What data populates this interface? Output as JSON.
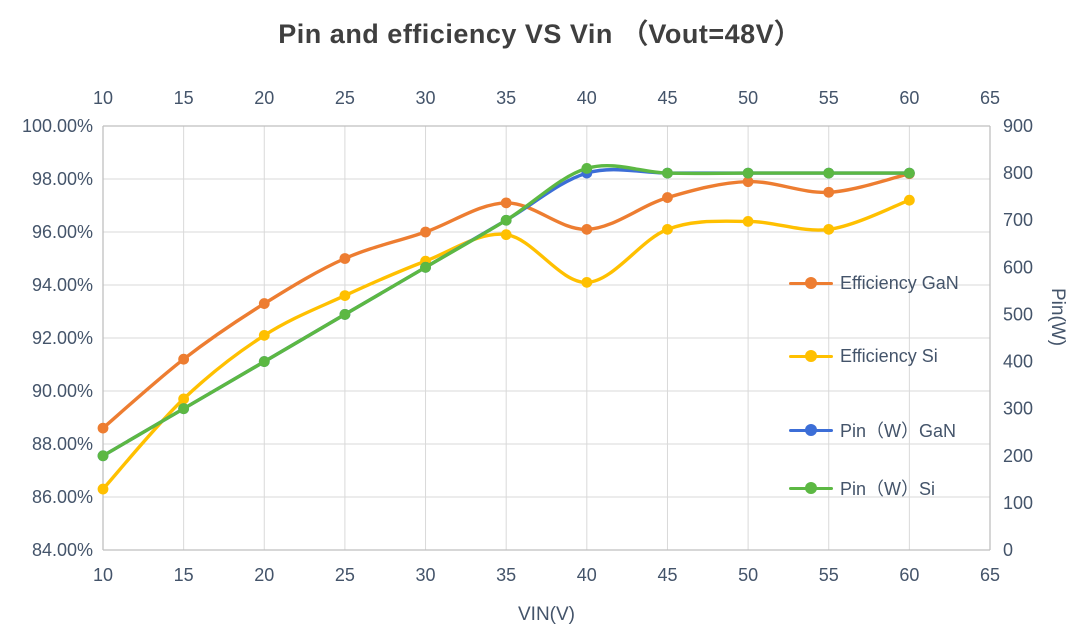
{
  "title": "Pin and efficiency VS Vin （Vout=48V）",
  "colors": {
    "efficiency_gan": "#ED7D31",
    "efficiency_si": "#FFC000",
    "pin_gan": "#3C6ED7",
    "pin_si": "#5CB843",
    "gridline": "#D9D9D9",
    "axis_line": "#BFBFBF",
    "tick_text": "#44546A",
    "title_text": "#3F3F3F"
  },
  "chart_data": {
    "type": "line",
    "title": "Pin and efficiency VS Vin （Vout=48V）",
    "xlabel": "VIN(V)",
    "ylabel_right": "Pin(W)",
    "grid": true,
    "legend_position": "right-inside",
    "x": [
      10,
      15,
      20,
      25,
      30,
      35,
      40,
      45,
      50,
      55,
      60
    ],
    "x_axis": {
      "min": 10,
      "max": 65,
      "ticks": [
        10,
        15,
        20,
        25,
        30,
        35,
        40,
        45,
        50,
        55,
        60,
        65
      ],
      "labels_top": true,
      "labels_bottom": true
    },
    "y_left": {
      "min": 84,
      "max": 100,
      "tick_step": 2,
      "tick_labels": [
        "84.00%",
        "86.00%",
        "88.00%",
        "90.00%",
        "92.00%",
        "94.00%",
        "96.00%",
        "98.00%",
        "100.00%"
      ]
    },
    "y_right": {
      "min": 0,
      "max": 900,
      "tick_step": 100,
      "tick_labels": [
        "0",
        "100",
        "200",
        "300",
        "400",
        "500",
        "600",
        "700",
        "800",
        "900"
      ]
    },
    "series": [
      {
        "name": "Efficiency GaN",
        "axis": "left",
        "color": "#ED7D31",
        "unit": "%",
        "values": [
          88.6,
          91.2,
          93.3,
          95.0,
          96.0,
          97.1,
          96.1,
          97.3,
          97.9,
          97.5,
          98.2
        ]
      },
      {
        "name": "Efficiency Si",
        "axis": "left",
        "color": "#FFC000",
        "unit": "%",
        "values": [
          86.3,
          89.7,
          92.1,
          93.6,
          94.9,
          95.9,
          94.1,
          96.1,
          96.4,
          96.1,
          97.2
        ]
      },
      {
        "name": "Pin（W）GaN",
        "axis": "right",
        "color": "#3C6ED7",
        "unit": "W",
        "values": [
          200,
          300,
          400,
          500,
          600,
          700,
          800,
          800,
          800,
          800,
          800
        ]
      },
      {
        "name": "Pin（W）Si",
        "axis": "right",
        "color": "#5CB843",
        "unit": "W",
        "values": [
          200,
          300,
          400,
          500,
          600,
          700,
          810,
          800,
          800,
          800,
          800
        ]
      }
    ]
  }
}
